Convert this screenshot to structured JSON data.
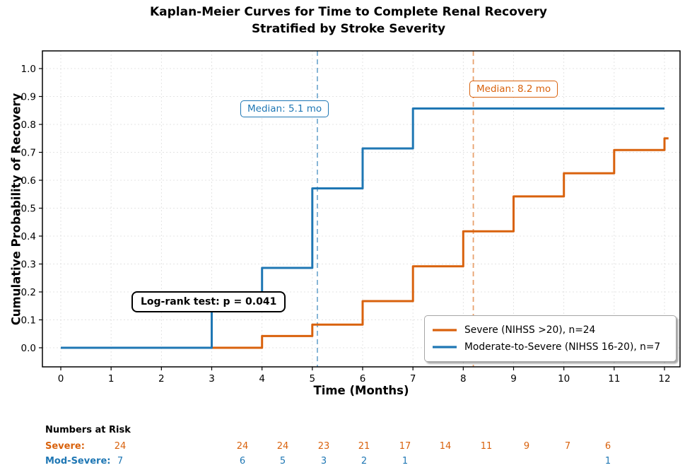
{
  "title": {
    "line1": "Kaplan-Meier Curves for Time to Complete Renal Recovery",
    "line2": "Stratified by Stroke Severity"
  },
  "chart_data": {
    "type": "line",
    "subtype": "kaplan_meier_step_curves",
    "title": "Kaplan-Meier Curves for Time to Complete Renal Recovery Stratified by Stroke Severity",
    "xlabel": "Time (Months)",
    "ylabel": "Cumulative Probability of Recovery",
    "xlim": [
      0,
      12
    ],
    "ylim": [
      0,
      1.0
    ],
    "grid": true,
    "legend_position": "lower right",
    "x_tick_labels": [
      "0",
      "1",
      "2",
      "3",
      "4",
      "5",
      "6",
      "7",
      "8",
      "9",
      "10",
      "11",
      "12"
    ],
    "y_tick_labels": [
      "0.0",
      "0.1",
      "0.2",
      "0.3",
      "0.4",
      "0.5",
      "0.6",
      "0.7",
      "0.8",
      "0.9",
      "1.0"
    ],
    "annotations": {
      "logrank": "Log-rank test: p = 0.041"
    },
    "series": [
      {
        "id": "severe",
        "name": "Severe (NIHSS >20), n=24",
        "color": "#d9620d",
        "median_x": 8.2,
        "median_label": "Median: 8.2 mo",
        "step_points": [
          [
            0,
            0
          ],
          [
            4,
            0
          ],
          [
            4,
            0.042
          ],
          [
            5,
            0.042
          ],
          [
            5,
            0.083
          ],
          [
            6,
            0.083
          ],
          [
            6,
            0.167
          ],
          [
            7,
            0.167
          ],
          [
            7,
            0.292
          ],
          [
            8,
            0.292
          ],
          [
            8,
            0.417
          ],
          [
            9,
            0.417
          ],
          [
            9,
            0.542
          ],
          [
            10,
            0.542
          ],
          [
            10,
            0.625
          ],
          [
            11,
            0.625
          ],
          [
            11,
            0.708
          ],
          [
            12,
            0.708
          ],
          [
            12,
            0.75
          ],
          [
            12.08,
            0.75
          ]
        ]
      },
      {
        "id": "moderate",
        "name": "Moderate-to-Severe (NIHSS 16-20), n=7",
        "color": "#1f77b4",
        "median_x": 5.1,
        "median_label": "Median: 5.1 mo",
        "step_points": [
          [
            0,
            0
          ],
          [
            3,
            0
          ],
          [
            3,
            0.143
          ],
          [
            4,
            0.143
          ],
          [
            4,
            0.286
          ],
          [
            5,
            0.286
          ],
          [
            5,
            0.571
          ],
          [
            6,
            0.571
          ],
          [
            6,
            0.714
          ],
          [
            7,
            0.714
          ],
          [
            7,
            0.857
          ],
          [
            12,
            0.857
          ]
        ]
      }
    ]
  },
  "risk_table": {
    "heading": "Numbers at Risk",
    "rows": [
      {
        "label": "Severe:",
        "color": "#d9620d",
        "values": [
          "24",
          "24",
          "24",
          "23",
          "21",
          "17",
          "14",
          "11",
          "9",
          "7",
          "6"
        ]
      },
      {
        "label": "Mod-Severe:",
        "color": "#1f77b4",
        "values": [
          "7",
          "6",
          "5",
          "3",
          "2",
          "1",
          "",
          "",
          "",
          "",
          "1"
        ]
      }
    ]
  }
}
